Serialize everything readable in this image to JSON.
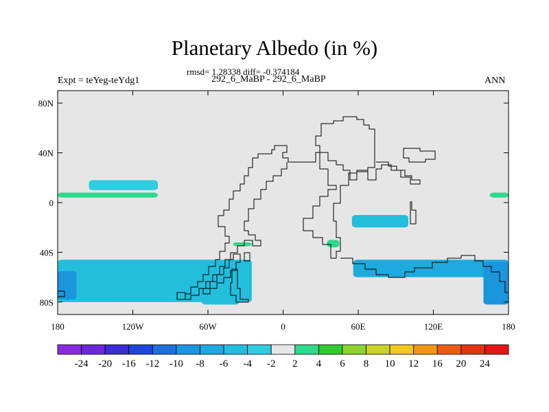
{
  "chart_data": {
    "type": "heatmap",
    "title": "Planetary Albedo (in %)",
    "stats_line": "rmsd= 1.28338 diff= -0.374184",
    "comparison": "292_6_MaBP - 292_6_MaBP",
    "experiment": "Expt = teYeg-teYdg1",
    "season": "ANN",
    "x_ticks": [
      "180",
      "120W",
      "60W",
      "0",
      "60E",
      "120E",
      "180"
    ],
    "x_tick_values": [
      -180,
      -120,
      -60,
      0,
      60,
      120,
      180
    ],
    "y_ticks": [
      "80N",
      "40N",
      "0",
      "40S",
      "80S"
    ],
    "y_tick_values": [
      80,
      40,
      0,
      -40,
      -80
    ],
    "xlim": [
      -180,
      180
    ],
    "ylim": [
      -90,
      90
    ],
    "colorbar": {
      "labels": [
        "-24",
        "-20",
        "-16",
        "-12",
        "-10",
        "-8",
        "-6",
        "-4",
        "-2",
        "2",
        "4",
        "6",
        "8",
        "10",
        "12",
        "16",
        "20",
        "24"
      ],
      "colors": [
        "#8a2be2",
        "#6a28d8",
        "#3c2cd6",
        "#1e46dc",
        "#1e6edc",
        "#1a96dc",
        "#1eaadc",
        "#22bedc",
        "#30cce0",
        "#e6e6e6",
        "#2ed88c",
        "#32c832",
        "#8cd232",
        "#c8d228",
        "#f0c81e",
        "#f09614",
        "#ec5a14",
        "#e63214",
        "#e61414"
      ]
    },
    "background_color": "#e6e6e6",
    "regions": [
      {
        "value": -3,
        "lon_range": [
          -155,
          -100
        ],
        "lat_range": [
          18,
          10
        ]
      },
      {
        "value": 3,
        "lon_range": [
          -180,
          -100
        ],
        "lat_range": [
          8,
          4
        ]
      },
      {
        "value": 3,
        "lon_range": [
          165,
          180
        ],
        "lat_range": [
          8,
          4
        ]
      },
      {
        "value": -4,
        "lon_range": [
          -180,
          -25
        ],
        "lat_range": [
          -46,
          -80
        ]
      },
      {
        "value": -8,
        "lon_range": [
          -180,
          -165
        ],
        "lat_range": [
          -55,
          -78
        ]
      },
      {
        "value": -4,
        "lon_range": [
          -65,
          -35
        ],
        "lat_range": [
          -60,
          -82
        ]
      },
      {
        "value": -4,
        "lon_range": [
          55,
          100
        ],
        "lat_range": [
          -10,
          -20
        ]
      },
      {
        "value": -6,
        "lon_range": [
          56,
          180
        ],
        "lat_range": [
          -46,
          -60
        ]
      },
      {
        "value": -8,
        "lon_range": [
          160,
          180
        ],
        "lat_range": [
          -48,
          -82
        ]
      },
      {
        "value": 3,
        "lon_range": [
          -40,
          -25
        ],
        "lat_range": [
          -32,
          -35
        ]
      },
      {
        "value": 3,
        "lon_range": [
          35,
          45
        ],
        "lat_range": [
          -30,
          -36
        ]
      }
    ]
  }
}
